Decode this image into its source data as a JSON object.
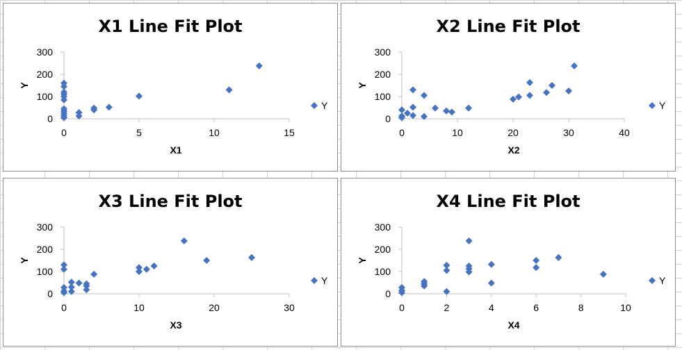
{
  "colors": {
    "marker": "#4472C4",
    "axis": "#bfbfbf",
    "grid_background": "#d4d4d4"
  },
  "chart_data": [
    {
      "type": "scatter",
      "title": "X1 Line Fit  Plot",
      "xlabel": "X1",
      "ylabel": "Y",
      "xlim": [
        0,
        15
      ],
      "ylim": [
        0,
        300
      ],
      "xticks": [
        0,
        5,
        10,
        15
      ],
      "yticks": [
        0,
        100,
        200,
        300
      ],
      "legend": "right",
      "series": [
        {
          "name": "Y",
          "points": [
            [
              0,
              5
            ],
            [
              0,
              15
            ],
            [
              0,
              25
            ],
            [
              0,
              35
            ],
            [
              0,
              45
            ],
            [
              0,
              85
            ],
            [
              0,
              100
            ],
            [
              0,
              110
            ],
            [
              0,
              120
            ],
            [
              0,
              145
            ],
            [
              0,
              160
            ],
            [
              1,
              12
            ],
            [
              1,
              28
            ],
            [
              2,
              40
            ],
            [
              2,
              48
            ],
            [
              3,
              52
            ],
            [
              5,
              102
            ],
            [
              11,
              130
            ],
            [
              13,
              238
            ]
          ]
        }
      ]
    },
    {
      "type": "scatter",
      "title": "X2 Line Fit  Plot",
      "xlabel": "X2",
      "ylabel": "Y",
      "xlim": [
        0,
        40
      ],
      "ylim": [
        0,
        300
      ],
      "xticks": [
        0,
        10,
        20,
        30,
        40
      ],
      "yticks": [
        0,
        100,
        200,
        300
      ],
      "legend": "right",
      "series": [
        {
          "name": "Y",
          "points": [
            [
              0,
              5
            ],
            [
              0,
              12
            ],
            [
              0,
              40
            ],
            [
              1,
              25
            ],
            [
              2,
              15
            ],
            [
              2,
              52
            ],
            [
              2,
              130
            ],
            [
              4,
              10
            ],
            [
              4,
              105
            ],
            [
              6,
              48
            ],
            [
              8,
              35
            ],
            [
              9,
              30
            ],
            [
              12,
              48
            ],
            [
              20,
              88
            ],
            [
              21,
              98
            ],
            [
              23,
              105
            ],
            [
              23,
              163
            ],
            [
              26,
              118
            ],
            [
              27,
              150
            ],
            [
              30,
              125
            ],
            [
              31,
              238
            ]
          ]
        }
      ]
    },
    {
      "type": "scatter",
      "title": "X3 Line Fit  Plot",
      "xlabel": "X3",
      "ylabel": "Y",
      "xlim": [
        0,
        30
      ],
      "ylim": [
        0,
        300
      ],
      "xticks": [
        0,
        10,
        20,
        30
      ],
      "yticks": [
        0,
        100,
        200,
        300
      ],
      "legend": "right",
      "series": [
        {
          "name": "Y",
          "points": [
            [
              0,
              5
            ],
            [
              0,
              12
            ],
            [
              0,
              28
            ],
            [
              0,
              110
            ],
            [
              0,
              130
            ],
            [
              1,
              10
            ],
            [
              1,
              30
            ],
            [
              1,
              52
            ],
            [
              2,
              48
            ],
            [
              3,
              18
            ],
            [
              3,
              35
            ],
            [
              3,
              45
            ],
            [
              4,
              88
            ],
            [
              10,
              100
            ],
            [
              10,
              118
            ],
            [
              11,
              110
            ],
            [
              12,
              125
            ],
            [
              16,
              238
            ],
            [
              19,
              150
            ],
            [
              25,
              163
            ]
          ]
        }
      ]
    },
    {
      "type": "scatter",
      "title": "X4 Line Fit  Plot",
      "xlabel": "X4",
      "ylabel": "Y",
      "xlim": [
        0,
        10
      ],
      "ylim": [
        0,
        300
      ],
      "xticks": [
        0,
        2,
        4,
        6,
        8,
        10
      ],
      "yticks": [
        0,
        100,
        200,
        300
      ],
      "legend": "right",
      "series": [
        {
          "name": "Y",
          "points": [
            [
              0,
              5
            ],
            [
              0,
              15
            ],
            [
              0,
              28
            ],
            [
              1,
              35
            ],
            [
              1,
              45
            ],
            [
              1,
              55
            ],
            [
              2,
              10
            ],
            [
              2,
              105
            ],
            [
              2,
              128
            ],
            [
              3,
              98
            ],
            [
              3,
              112
            ],
            [
              3,
              125
            ],
            [
              3,
              238
            ],
            [
              4,
              48
            ],
            [
              4,
              132
            ],
            [
              6,
              118
            ],
            [
              6,
              150
            ],
            [
              7,
              163
            ],
            [
              9,
              88
            ]
          ]
        }
      ]
    }
  ]
}
